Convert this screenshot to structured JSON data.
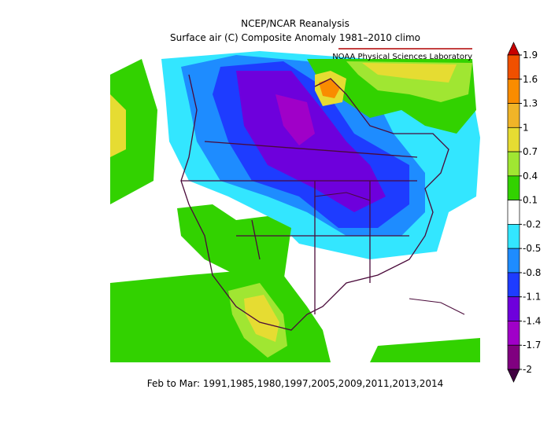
{
  "header": {
    "title": "NCEP/NCAR Reanalysis",
    "subtitle": "Surface air (C) Composite Anomaly 1981–2010 climo",
    "credit": "NOAA Physical Sciences Laboratory"
  },
  "colorbar": {
    "ticks": [
      1.9,
      1.6,
      1.3,
      1,
      0.7,
      0.4,
      0.1,
      -0.2,
      -0.5,
      -0.8,
      -1.1,
      -1.4,
      -1.7,
      -2
    ],
    "colors": [
      "#c80000",
      "#f05000",
      "#fa8c00",
      "#f0b428",
      "#e6dc32",
      "#a0e632",
      "#32d200",
      "#ffffff",
      "#33e6ff",
      "#1e8cff",
      "#1e3cff",
      "#6e00dc",
      "#a000c8",
      "#800080",
      "#400040"
    ]
  },
  "footer": {
    "caption": "Feb to Mar: 1991,1985,1980,1997,2005,2009,2011,2013,2014"
  }
}
